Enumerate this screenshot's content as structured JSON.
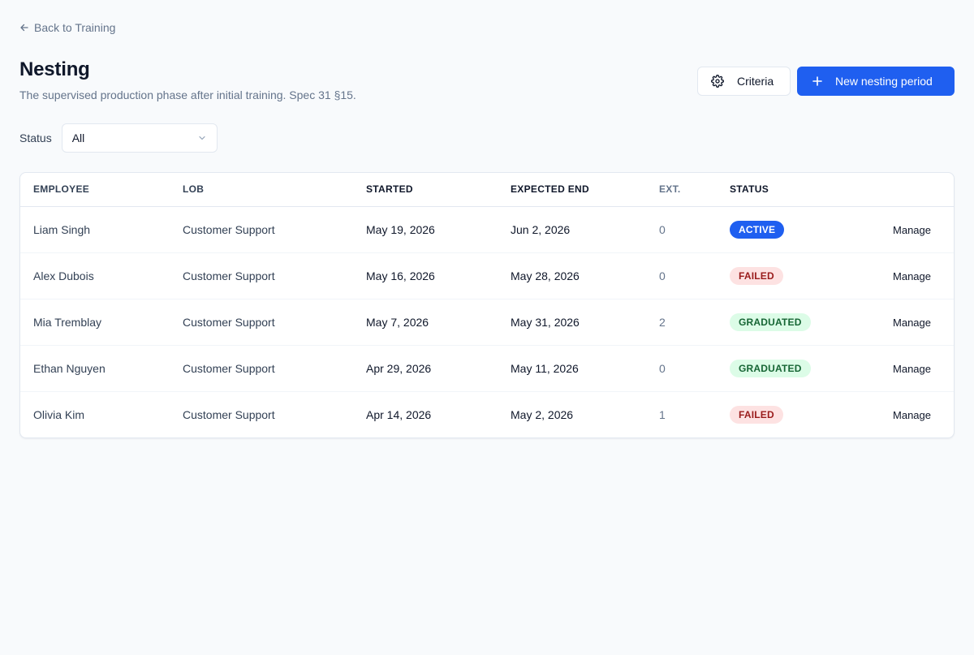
{
  "nav": {
    "back_label": "Back to Training"
  },
  "header": {
    "title": "Nesting",
    "subtitle": "The supervised production phase after initial training. Spec 31 §15."
  },
  "actions": {
    "criteria_label": "Criteria",
    "new_label": "New nesting period"
  },
  "filter": {
    "label": "Status",
    "value": "All"
  },
  "table": {
    "headers": {
      "employee": "EMPLOYEE",
      "lob": "LOB",
      "started": "STARTED",
      "expected_end": "EXPECTED END",
      "ext": "EXT.",
      "status": "STATUS"
    },
    "action_label": "Manage",
    "rows": [
      {
        "employee": "Liam Singh",
        "lob": "Customer Support",
        "started": "May 19, 2026",
        "expected_end": "Jun 2, 2026",
        "ext": "0",
        "status": "ACTIVE",
        "status_kind": "active"
      },
      {
        "employee": "Alex Dubois",
        "lob": "Customer Support",
        "started": "May 16, 2026",
        "expected_end": "May 28, 2026",
        "ext": "0",
        "status": "FAILED",
        "status_kind": "failed"
      },
      {
        "employee": "Mia Tremblay",
        "lob": "Customer Support",
        "started": "May 7, 2026",
        "expected_end": "May 31, 2026",
        "ext": "2",
        "status": "GRADUATED",
        "status_kind": "graduated"
      },
      {
        "employee": "Ethan Nguyen",
        "lob": "Customer Support",
        "started": "Apr 29, 2026",
        "expected_end": "May 11, 2026",
        "ext": "0",
        "status": "GRADUATED",
        "status_kind": "graduated"
      },
      {
        "employee": "Olivia Kim",
        "lob": "Customer Support",
        "started": "Apr 14, 2026",
        "expected_end": "May 2, 2026",
        "ext": "1",
        "status": "FAILED",
        "status_kind": "failed"
      }
    ]
  },
  "colors": {
    "primary": "#1f5ff0",
    "failed_bg": "#fde2e2",
    "failed_text": "#991b1b",
    "graduated_bg": "#dcfce7",
    "graduated_text": "#166534"
  },
  "icons": {
    "back": "arrow-left-icon",
    "criteria": "gear-icon",
    "new": "plus-icon",
    "select": "chevron-down-icon"
  }
}
